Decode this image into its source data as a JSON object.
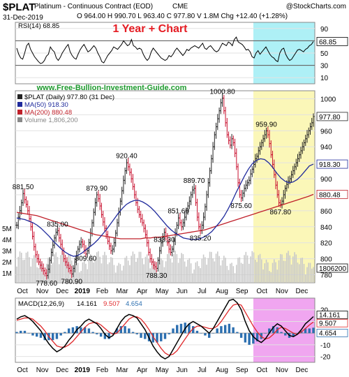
{
  "header": {
    "symbol": "$PLAT",
    "name": "Platinum - Continuous Contract (EOD)",
    "exchange": "CME",
    "date": "31-Dec-2019",
    "ohlc": "O 964.00  H 990.70  L 963.40  C 977.80  V 1.8M  Chg +12.40 (+1.28%)",
    "credit": "@StockCharts.com",
    "overlay_title": "1 Year + Chart",
    "website": "www.Free-Bullion-Investment-Guide.com"
  },
  "colors": {
    "rsi_band": "#aef0f6",
    "price_band": "#fbf7b8",
    "macd_band": "#f0a6f0",
    "ma50": "#1f2a9c",
    "ma200": "#c0202a",
    "up_bar": "#222222",
    "down_bar": "#c8102e",
    "volume": "#c9c9c9",
    "macd_line": "#000000",
    "signal_line": "#e0282a",
    "histogram": "#2c6fb0",
    "overlay_title": "#e51c23",
    "website": "#1e9a2e"
  },
  "chart_data": [
    {
      "type": "line",
      "panel": "RSI",
      "legend": "RSI(14) 68.85",
      "ylim": [
        0,
        100
      ],
      "yticks": [
        10,
        30,
        50,
        70,
        90
      ],
      "reference_lines": [
        30,
        70
      ],
      "last_value_label": "68.85",
      "values": [
        58,
        48,
        42,
        40,
        50,
        62,
        66,
        56,
        50,
        44,
        40,
        36,
        33,
        34,
        38,
        45,
        48,
        60,
        55,
        52,
        42,
        38,
        43,
        50,
        55,
        60,
        64,
        52,
        46,
        42,
        40,
        48,
        55,
        60,
        64,
        58,
        52,
        54,
        58,
        62,
        58,
        50,
        44,
        36,
        34,
        40,
        46,
        50,
        54,
        60,
        58,
        56,
        60,
        64,
        70,
        66,
        62,
        64,
        72,
        62,
        60,
        56,
        58,
        56,
        48,
        42,
        38,
        42,
        52,
        58,
        54,
        50,
        46,
        42,
        40,
        38,
        40,
        46,
        44,
        48,
        54,
        58,
        54,
        50,
        46,
        50,
        56,
        54,
        58,
        60,
        62,
        60,
        58,
        62,
        66,
        58,
        56,
        60,
        62,
        58,
        54,
        52,
        54,
        60,
        66,
        64,
        62,
        68,
        66,
        62,
        72,
        76,
        68,
        66,
        64,
        60,
        55,
        56,
        52,
        44,
        42,
        50,
        54,
        48,
        52,
        56,
        60,
        54,
        48,
        44,
        42,
        38,
        36,
        50,
        56,
        58,
        48,
        42,
        38,
        40,
        45,
        50,
        55,
        56,
        54,
        52,
        56,
        58,
        62,
        64,
        68.85
      ]
    },
    {
      "type": "ohlc",
      "panel": "Price",
      "legend": [
        "$PLAT (Daily) 977.80 (31 Dec)",
        "MA(50) 918.30",
        "MA(200) 880.48",
        "Volume 1,806,200"
      ],
      "x_ticks": [
        "Oct",
        "Nov",
        "Dec",
        "2019",
        "Feb",
        "Mar",
        "Apr",
        "May",
        "Jun",
        "Jul",
        "Aug",
        "Sep",
        "Oct",
        "Nov",
        "Dec"
      ],
      "ylim": [
        770,
        1010
      ],
      "yticks": [
        780,
        800,
        820,
        840,
        860,
        880,
        900,
        920,
        940,
        960,
        980,
        1000
      ],
      "last_value_labels": [
        "977.80",
        "918.30",
        "880.48",
        "1806200"
      ],
      "volume_ticks": [
        "1M",
        "2M",
        "3M",
        "4M",
        "5M"
      ],
      "annotations": [
        "881.50",
        "778.60",
        "835.00",
        "780.90",
        "879.90",
        "809.60",
        "920.40",
        "833.30",
        "788.30",
        "851.60",
        "889.70",
        "835.20",
        "1000.80",
        "875.60",
        "959.90",
        "867.80"
      ],
      "close": [
        842,
        852,
        860,
        870,
        881.5,
        874,
        868,
        860,
        850,
        840,
        828,
        815,
        805,
        800,
        796,
        792,
        788,
        785,
        782,
        779,
        787,
        798,
        808,
        817,
        826,
        833,
        835,
        826,
        818,
        810,
        800,
        796,
        792,
        788,
        785,
        781,
        788,
        796,
        804,
        812,
        818,
        821,
        818,
        811,
        806,
        810,
        820,
        832,
        845,
        858,
        870,
        880,
        875,
        866,
        855,
        846,
        838,
        830,
        822,
        816,
        810,
        812,
        820,
        832,
        845,
        858,
        872,
        885,
        898,
        910,
        920,
        915,
        908,
        900,
        890,
        880,
        870,
        862,
        855,
        850,
        845,
        838,
        830,
        820,
        808,
        800,
        796,
        792,
        790,
        788,
        798,
        810,
        820,
        828,
        833,
        828,
        820,
        812,
        808,
        812,
        822,
        832,
        842,
        851,
        845,
        840,
        845,
        852,
        860,
        866,
        872,
        880,
        886,
        888,
        870,
        852,
        840,
        835,
        842,
        852,
        865,
        880,
        895,
        910,
        925,
        940,
        955,
        965,
        975,
        985,
        995,
        1000.8,
        985,
        970,
        955,
        948,
        942,
        950,
        945,
        932,
        915,
        895,
        880,
        876,
        882,
        888,
        892,
        895,
        898,
        906,
        912,
        918,
        925,
        928,
        935,
        940,
        945,
        950,
        955,
        959.9,
        955,
        944,
        930,
        918,
        905,
        892,
        880,
        870,
        867.8,
        872,
        880,
        888,
        893,
        897,
        900,
        905,
        910,
        915,
        920,
        925,
        930,
        935,
        940,
        945,
        950,
        955,
        960,
        965,
        970,
        977.8
      ],
      "ma50": [
        851,
        850,
        849,
        847,
        845,
        842,
        838,
        833,
        828,
        822,
        817,
        812,
        808,
        805,
        803,
        804,
        807,
        811,
        815,
        819,
        824,
        830,
        836,
        843,
        850,
        857,
        863,
        868,
        871,
        873,
        873,
        871,
        868,
        864,
        859,
        853,
        847,
        841,
        836,
        832,
        829,
        826,
        825,
        824,
        824,
        825,
        827,
        830,
        834,
        840,
        846,
        853,
        862,
        872,
        883,
        893,
        903,
        912,
        919,
        923,
        925,
        924,
        920,
        914,
        907,
        901,
        897,
        895,
        896,
        899,
        904,
        910,
        916,
        918.3
      ],
      "ma200": [
        858,
        857,
        856,
        855,
        854,
        852,
        850,
        848,
        846,
        844,
        842,
        840,
        838,
        836,
        834,
        832,
        830,
        829,
        828,
        827,
        826,
        825,
        825,
        825,
        825,
        825,
        826,
        826,
        827,
        827,
        828,
        829,
        830,
        831,
        832,
        833,
        834,
        835,
        836,
        838,
        840,
        842,
        844,
        846,
        848,
        850,
        852,
        854,
        856,
        858,
        860,
        862,
        864,
        866,
        868,
        870,
        872,
        874,
        876,
        878,
        880.48
      ]
    },
    {
      "type": "line",
      "panel": "MACD",
      "legend": {
        "title": "MACD(12,26,9)",
        "macd": "14.161",
        "signal": "9.507",
        "histogram": "4.654"
      },
      "ylim": [
        -25,
        30
      ],
      "yticks": [
        -20,
        -10,
        0,
        10,
        20
      ],
      "x_ticks": [
        "Oct",
        "Nov",
        "Dec",
        "2019",
        "Feb",
        "Mar",
        "Apr",
        "May",
        "Jun",
        "Jul",
        "Aug",
        "Sep",
        "Oct",
        "Nov",
        "Dec"
      ],
      "last_value_labels": [
        "14.161",
        "9.507",
        "4.654"
      ],
      "macd": [
        12,
        14,
        15,
        13,
        10,
        6,
        2,
        -4,
        -9,
        -13,
        -16,
        -14,
        -11,
        -6,
        -2,
        3,
        6,
        10,
        12,
        10,
        8,
        4,
        -1,
        -4,
        -2,
        4,
        10,
        14,
        16,
        15,
        13,
        8,
        3,
        -4,
        -11,
        -16,
        -20,
        -22,
        -20,
        -14,
        -8,
        -2,
        4,
        8,
        10,
        8,
        6,
        3,
        0,
        4,
        10,
        16,
        22,
        28,
        29,
        26,
        20,
        10,
        2,
        -3,
        -6,
        -8,
        -5,
        0,
        5,
        8,
        6,
        2,
        -2,
        -3,
        -1,
        3,
        8,
        11,
        14.161
      ],
      "signal": [
        11,
        12,
        13,
        13,
        12,
        9,
        6,
        2,
        -3,
        -7,
        -11,
        -12,
        -12,
        -10,
        -7,
        -3,
        1,
        5,
        8,
        9,
        9,
        7,
        4,
        1,
        -1,
        0,
        4,
        8,
        12,
        14,
        14,
        12,
        8,
        3,
        -3,
        -8,
        -13,
        -17,
        -19,
        -18,
        -15,
        -10,
        -5,
        0,
        4,
        6,
        6,
        5,
        4,
        4,
        6,
        10,
        15,
        20,
        24,
        25,
        24,
        18,
        12,
        6,
        1,
        -3,
        -5,
        -4,
        -1,
        3,
        5,
        4,
        2,
        0,
        -1,
        1,
        4,
        7,
        9.507
      ]
    }
  ]
}
